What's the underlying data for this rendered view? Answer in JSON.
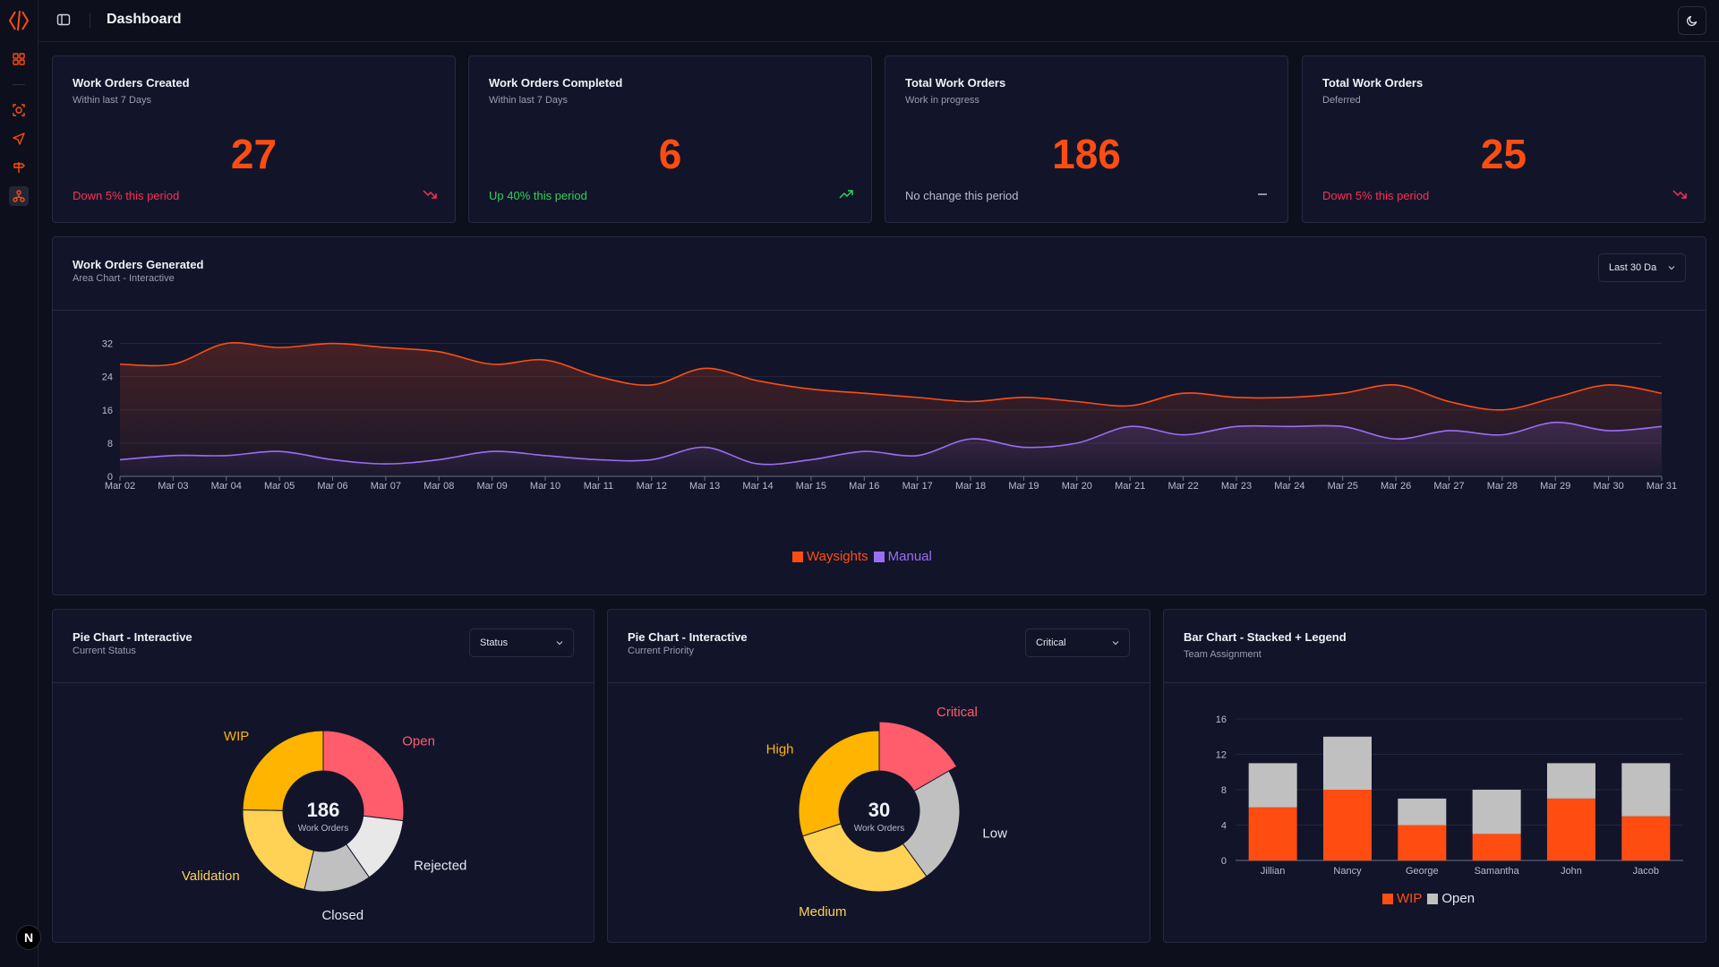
{
  "app": {
    "title": "Dashboard"
  },
  "sidebar": {
    "items": [
      {
        "icon": "grid-icon",
        "active": false
      },
      {
        "icon": "scan-icon",
        "active": false
      },
      {
        "icon": "send-icon",
        "active": false
      },
      {
        "icon": "signpost-icon",
        "active": false
      },
      {
        "icon": "network-icon",
        "active": true
      }
    ],
    "avatar_letter": "N"
  },
  "stats": [
    {
      "title": "Work Orders Created",
      "sub": "Within last 7 Days",
      "value": "27",
      "trend": "Down 5% this period",
      "dir": "down"
    },
    {
      "title": "Work Orders Completed",
      "sub": "Within last 7 Days",
      "value": "6",
      "trend": "Up 40% this period",
      "dir": "up"
    },
    {
      "title": "Total Work Orders",
      "sub": "Work in progress",
      "value": "186",
      "trend": "No change this period",
      "dir": "flat"
    },
    {
      "title": "Total Work Orders",
      "sub": "Deferred",
      "value": "25",
      "trend": "Down 5% this period",
      "dir": "down"
    }
  ],
  "area_card": {
    "title": "Work Orders Generated",
    "sub": "Area Chart - Interactive",
    "select_value": "Last 30 Da"
  },
  "pie1_card": {
    "title": "Pie Chart - Interactive",
    "sub": "Current Status",
    "select_value": "Status"
  },
  "pie2_card": {
    "title": "Pie Chart - Interactive",
    "sub": "Current Priority",
    "select_value": "Critical"
  },
  "bar_card": {
    "title": "Bar Chart - Stacked + Legend",
    "sub": "Team Assignment"
  },
  "colors": {
    "accent": "#ff4d12",
    "manual": "#9b6ef3",
    "open": "#ff5c6c",
    "wip": "#ffb400",
    "validation": "#ffd154",
    "closed": "#c0c0c0",
    "rejected": "#e8e8e8"
  },
  "chart_data": [
    {
      "type": "area",
      "categories": [
        "Mar 02",
        "Mar 03",
        "Mar 04",
        "Mar 05",
        "Mar 06",
        "Mar 07",
        "Mar 08",
        "Mar 09",
        "Mar 10",
        "Mar 11",
        "Mar 12",
        "Mar 13",
        "Mar 14",
        "Mar 15",
        "Mar 16",
        "Mar 17",
        "Mar 18",
        "Mar 19",
        "Mar 20",
        "Mar 21",
        "Mar 22",
        "Mar 23",
        "Mar 24",
        "Mar 25",
        "Mar 26",
        "Mar 27",
        "Mar 28",
        "Mar 29",
        "Mar 30",
        "Mar 31"
      ],
      "series": [
        {
          "name": "Waysights",
          "values": [
            27,
            27,
            32,
            31,
            32,
            31,
            30,
            27,
            28,
            24,
            22,
            26,
            23,
            21,
            20,
            19,
            18,
            19,
            18,
            17,
            20,
            19,
            19,
            20,
            22,
            18,
            16,
            19,
            22,
            20
          ]
        },
        {
          "name": "Manual",
          "values": [
            4,
            5,
            5,
            6,
            4,
            3,
            4,
            6,
            5,
            4,
            4,
            7,
            3,
            4,
            6,
            5,
            9,
            7,
            8,
            12,
            10,
            12,
            12,
            12,
            9,
            11,
            10,
            13,
            11,
            12
          ]
        }
      ],
      "yticks": [
        0,
        8,
        16,
        24,
        32
      ],
      "ylim": [
        0,
        36
      ],
      "grid": true,
      "legend": "bottom-center"
    },
    {
      "type": "pie",
      "center_value": "186",
      "center_label": "Work Orders",
      "labels": [
        "Open",
        "Rejected",
        "Closed",
        "Validation",
        "WIP"
      ],
      "values": [
        50,
        25,
        25,
        40,
        46
      ]
    },
    {
      "type": "pie",
      "center_value": "30",
      "center_label": "Work Orders",
      "labels": [
        "Critical",
        "Low",
        "Medium",
        "High"
      ],
      "values": [
        5,
        7,
        9,
        9
      ],
      "highlighted": "Critical"
    },
    {
      "type": "bar",
      "stacked": true,
      "categories": [
        "Jillian",
        "Nancy",
        "George",
        "Samantha",
        "John",
        "Jacob"
      ],
      "series": [
        {
          "name": "WIP",
          "values": [
            6,
            8,
            4,
            3,
            7,
            5
          ]
        },
        {
          "name": "Open",
          "values": [
            5,
            6,
            3,
            5,
            4,
            6
          ]
        }
      ],
      "yticks": [
        0,
        4,
        8,
        12,
        16
      ],
      "ylim": [
        0,
        16
      ],
      "grid": true,
      "legend": "bottom-center"
    }
  ]
}
